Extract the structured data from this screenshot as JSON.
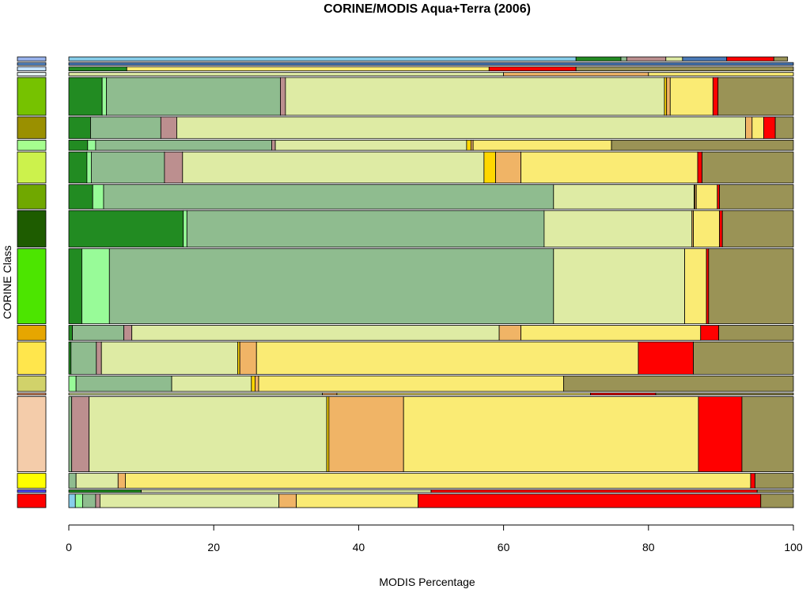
{
  "chart_data": {
    "type": "bar",
    "subtype": "mosaic / stacked horizontal 100% bars",
    "title": "CORINE/MODIS Aqua+Terra (2006)",
    "xlabel": "MODIS Percentage",
    "ylabel": "CORINE Class",
    "xlim": [
      0,
      100
    ],
    "xticks": [
      0,
      20,
      40,
      60,
      80,
      100
    ],
    "grid": false,
    "legend": "none",
    "modis_colors": [
      "#87ceeb",
      "#228b22",
      "#98fb98",
      "#8fbc8f",
      "#bc8f8f",
      "#deeba4",
      "#ffd700",
      "#f0b466",
      "#faeb74",
      "#ff0000",
      "#9a9356",
      "#4a7ab8",
      "#d7a24d"
    ],
    "rows": [
      {
        "color": "#99b3ee",
        "share": 0.6,
        "segments": [
          [
            0,
            70
          ],
          [
            1,
            6.2
          ],
          [
            3,
            0.8
          ],
          [
            4,
            5.4
          ],
          [
            5,
            2.3
          ],
          [
            11,
            6.1
          ],
          [
            9,
            6.5
          ],
          [
            10,
            1.9
          ]
        ]
      },
      {
        "color": "#5a8dcc",
        "share": 0.4,
        "segments": [
          [
            11,
            100
          ]
        ]
      },
      {
        "color": "#c3e0ff",
        "share": 0.6,
        "segments": [
          [
            1,
            8
          ],
          [
            8,
            50
          ],
          [
            9,
            12
          ],
          [
            10,
            30
          ]
        ]
      },
      {
        "color": "#e8f6f4",
        "share": 0.5,
        "segments": [
          [
            5,
            60
          ],
          [
            7,
            20
          ],
          [
            8,
            20
          ]
        ]
      },
      {
        "color": "#76c200",
        "share": 5.6,
        "segments": [
          [
            1,
            4.6
          ],
          [
            2,
            0.6
          ],
          [
            3,
            24
          ],
          [
            4,
            0.7
          ],
          [
            5,
            52.3
          ],
          [
            6,
            0.3
          ],
          [
            7,
            0.5
          ],
          [
            8,
            5.9
          ],
          [
            9,
            0.7
          ],
          [
            10,
            10.4
          ]
        ]
      },
      {
        "color": "#9a9000",
        "share": 3.2,
        "segments": [
          [
            1,
            3
          ],
          [
            3,
            9.7
          ],
          [
            4,
            2.2
          ],
          [
            5,
            78.5
          ],
          [
            7,
            0.9
          ],
          [
            8,
            1.6
          ],
          [
            9,
            1.6
          ],
          [
            10,
            2.5
          ]
        ]
      },
      {
        "color": "#a6fe8f",
        "share": 1.5,
        "segments": [
          [
            1,
            2.6
          ],
          [
            2,
            1.1
          ],
          [
            3,
            24.3
          ],
          [
            4,
            0.5
          ],
          [
            5,
            26.4
          ],
          [
            6,
            0.6
          ],
          [
            7,
            0.3
          ],
          [
            8,
            19.1
          ],
          [
            10,
            25.1
          ]
        ]
      },
      {
        "color": "#ccf24c",
        "share": 4.6,
        "segments": [
          [
            1,
            2.5
          ],
          [
            2,
            0.6
          ],
          [
            3,
            10.1
          ],
          [
            4,
            2.5
          ],
          [
            5,
            41.6
          ],
          [
            6,
            1.6
          ],
          [
            7,
            3.5
          ],
          [
            8,
            24.4
          ],
          [
            9,
            0.6
          ],
          [
            10,
            12.6
          ]
        ]
      },
      {
        "color": "#70a800",
        "share": 3.6,
        "segments": [
          [
            1,
            3.3
          ],
          [
            2,
            1.5
          ],
          [
            3,
            62.1
          ],
          [
            5,
            19.4
          ],
          [
            6,
            0.1
          ],
          [
            7,
            0.2
          ],
          [
            8,
            2.9
          ],
          [
            9,
            0.3
          ],
          [
            10,
            10.2
          ]
        ]
      },
      {
        "color": "#1e5c00",
        "share": 5.4,
        "segments": [
          [
            1,
            15.8
          ],
          [
            2,
            0.5
          ],
          [
            3,
            49.3
          ],
          [
            5,
            20.4
          ],
          [
            7,
            0.2
          ],
          [
            8,
            3.6
          ],
          [
            9,
            0.4
          ],
          [
            10,
            9.8
          ]
        ]
      },
      {
        "color": "#4ce500",
        "share": 11.1,
        "segments": [
          [
            1,
            1.8
          ],
          [
            2,
            3.8
          ],
          [
            3,
            61.3
          ],
          [
            5,
            18.1
          ],
          [
            8,
            3
          ],
          [
            9,
            0.3
          ],
          [
            10,
            11.7
          ]
        ]
      },
      {
        "color": "#e6a600",
        "share": 2.2,
        "segments": [
          [
            1,
            0.5
          ],
          [
            3,
            7.1
          ],
          [
            4,
            1.1
          ],
          [
            5,
            50.7
          ],
          [
            7,
            3
          ],
          [
            8,
            24.8
          ],
          [
            9,
            2.5
          ],
          [
            10,
            10.3
          ]
        ]
      },
      {
        "color": "#ffe64c",
        "share": 4.8,
        "segments": [
          [
            1,
            0.3
          ],
          [
            3,
            3.5
          ],
          [
            4,
            0.7
          ],
          [
            5,
            18.8
          ],
          [
            6,
            0.3
          ],
          [
            7,
            2.3
          ],
          [
            8,
            52.7
          ],
          [
            9,
            7.6
          ],
          [
            10,
            13.8
          ]
        ]
      },
      {
        "color": "#d1d26a",
        "share": 2.3,
        "segments": [
          [
            2,
            1
          ],
          [
            3,
            13.2
          ],
          [
            5,
            11
          ],
          [
            6,
            0.5
          ],
          [
            7,
            0.5
          ],
          [
            8,
            42.1
          ],
          [
            10,
            31.7
          ]
        ]
      },
      {
        "color": "#ec9b6e",
        "share": 0.3,
        "segments": [
          [
            5,
            35
          ],
          [
            7,
            2
          ],
          [
            8,
            35
          ],
          [
            9,
            9
          ],
          [
            10,
            19
          ]
        ]
      },
      {
        "color": "#f4ccaa",
        "share": 11.1,
        "segments": [
          [
            3,
            0.4
          ],
          [
            4,
            2.4
          ],
          [
            5,
            32.8
          ],
          [
            6,
            0.3
          ],
          [
            7,
            10.3
          ],
          [
            8,
            40.7
          ],
          [
            9,
            6
          ],
          [
            10,
            7.1
          ]
        ]
      },
      {
        "color": "#ffff00",
        "share": 2.2,
        "segments": [
          [
            3,
            1
          ],
          [
            5,
            5.8
          ],
          [
            7,
            1
          ],
          [
            8,
            86.3
          ],
          [
            9,
            0.6
          ],
          [
            10,
            5.3
          ]
        ]
      },
      {
        "color": "#4c4cff",
        "share": 0.4,
        "segments": [
          [
            1,
            10
          ],
          [
            5,
            40
          ],
          [
            9,
            45
          ],
          [
            10,
            5
          ]
        ]
      },
      {
        "color": "#ff0000",
        "share": 2,
        "segments": [
          [
            0,
            0.9
          ],
          [
            2,
            1
          ],
          [
            3,
            1.8
          ],
          [
            4,
            0.6
          ],
          [
            5,
            24.7
          ],
          [
            7,
            2.4
          ],
          [
            8,
            16.8
          ],
          [
            9,
            47.3
          ],
          [
            10,
            4.5
          ]
        ]
      }
    ]
  }
}
